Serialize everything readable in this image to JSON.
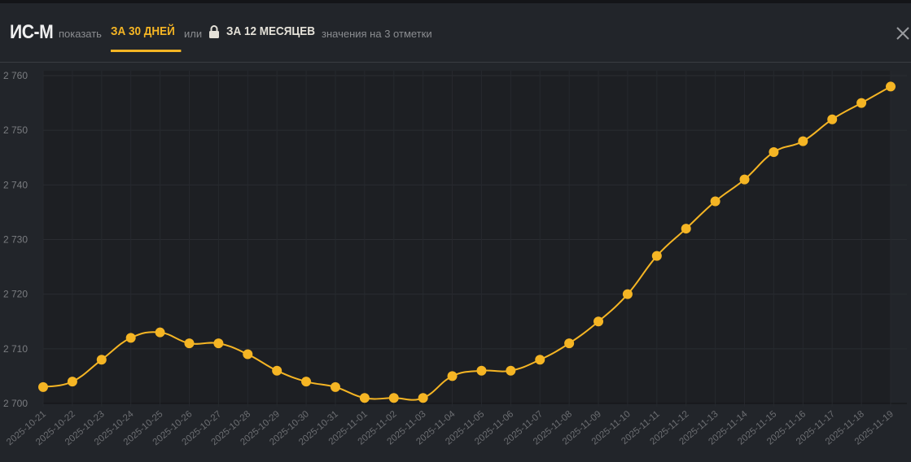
{
  "header": {
    "title": "ИС-М",
    "show_label": "показать",
    "tab_30_days": "ЗА 30 ДНЕЙ",
    "or_label": "или",
    "tab_12_months": "ЗА 12 МЕСЯЦЕВ",
    "subtitle": "значения на 3 отметки",
    "lock_icon": "lock-icon",
    "close_icon": "close-icon"
  },
  "colors": {
    "accent": "#f5b524",
    "background": "#22252a",
    "plot_background": "#1d1f23"
  },
  "chart_data": {
    "type": "line",
    "smooth": true,
    "markers": true,
    "grid": true,
    "x": [
      "2025-10-21",
      "2025-10-22",
      "2025-10-23",
      "2025-10-24",
      "2025-10-25",
      "2025-10-26",
      "2025-10-27",
      "2025-10-28",
      "2025-10-29",
      "2025-10-30",
      "2025-10-31",
      "2025-11-01",
      "2025-11-02",
      "2025-11-03",
      "2025-11-04",
      "2025-11-05",
      "2025-11-06",
      "2025-11-07",
      "2025-11-08",
      "2025-11-09",
      "2025-11-10",
      "2025-11-11",
      "2025-11-12",
      "2025-11-13",
      "2025-11-14",
      "2025-11-15",
      "2025-11-16",
      "2025-11-17",
      "2025-11-18",
      "2025-11-19"
    ],
    "values": [
      2703,
      2704,
      2708,
      2712,
      2713,
      2711,
      2711,
      2709,
      2706,
      2704,
      2703,
      2701,
      2701,
      2701,
      2705,
      2706,
      2706,
      2708,
      2711,
      2715,
      2720,
      2727,
      2732,
      2737,
      2741,
      2746,
      2748,
      2752,
      2755,
      2758
    ],
    "ylim": [
      2700,
      2760
    ],
    "yticks": [
      2700,
      2710,
      2720,
      2730,
      2740,
      2750,
      2760
    ],
    "ytick_labels": [
      "2 700",
      "2 710",
      "2 720",
      "2 730",
      "2 740",
      "2 750",
      "2 760"
    ],
    "color": "#f5b524"
  }
}
